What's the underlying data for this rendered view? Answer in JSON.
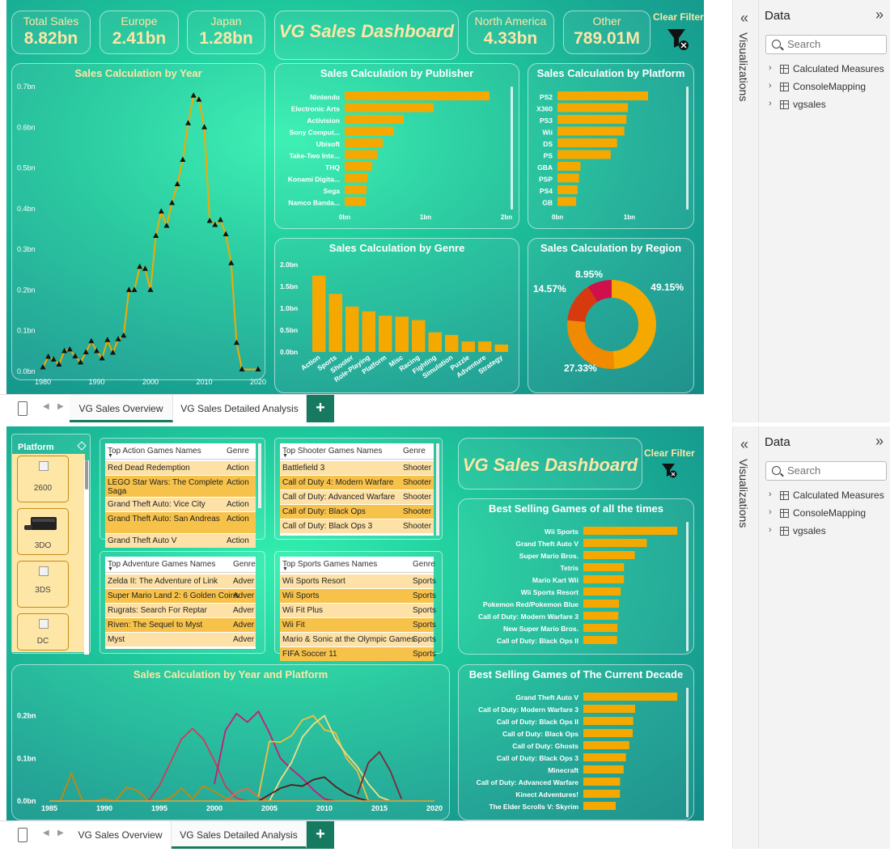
{
  "colors": {
    "accent": "#f5a800",
    "title_text": "#fde6a6",
    "line_gold": "#f5a800",
    "donut": [
      "#f5a800",
      "#f08a00",
      "#d83a10",
      "#d0104a"
    ]
  },
  "top": {
    "kpis": [
      {
        "label": "Total Sales",
        "value": "8.82bn"
      },
      {
        "label": "Europe",
        "value": "2.41bn"
      },
      {
        "label": "Japan",
        "value": "1.28bn"
      },
      {
        "label": "North America",
        "value": "4.33bn"
      },
      {
        "label": "Other",
        "value": "789.01M"
      }
    ],
    "dashboard_title": "VG Sales Dashboard",
    "clear_filter": "Clear Filter"
  },
  "bottom": {
    "dashboard_title": "VG Sales Dashboard",
    "clear_filter": "Clear Filter"
  },
  "tabs": {
    "overview": "VG Sales Overview",
    "detailed": "VG Sales Detailed Analysis",
    "add": "+"
  },
  "panes": {
    "visualizations": "Visualizations",
    "data": "Data",
    "search_placeholder": "Search",
    "items": [
      "Calculated Measures",
      "ConsoleMapping",
      "vgsales"
    ]
  },
  "platform_slicer": {
    "title": "Platform",
    "items": [
      "2600",
      "3DO",
      "3DS",
      "DC"
    ]
  },
  "tables": {
    "action": {
      "col1": "Top Action Games Names",
      "col2": "Genre",
      "rows": [
        [
          "Red Dead Redemption",
          "Action"
        ],
        [
          "LEGO Star Wars: The Complete Saga",
          "Action"
        ],
        [
          "Grand Theft Auto: Vice City",
          "Action"
        ],
        [
          "Grand Theft Auto: San Andreas",
          "Action"
        ],
        [
          "Grand Theft Auto V",
          "Action"
        ]
      ]
    },
    "shooter": {
      "col1": "Top Shooter Games Names",
      "col2": "Genre",
      "rows": [
        [
          "Battlefield 3",
          "Shooter"
        ],
        [
          "Call of Duty 4: Modern Warfare",
          "Shooter"
        ],
        [
          "Call of Duty: Advanced Warfare",
          "Shooter"
        ],
        [
          "Call of Duty: Black Ops",
          "Shooter"
        ],
        [
          "Call of Duty: Black Ops 3",
          "Shooter"
        ]
      ]
    },
    "adventure": {
      "col1": "Top Adventure Games Names",
      "col2": "Genre",
      "rows": [
        [
          "Zelda II: The Adventure of Link",
          "Adver"
        ],
        [
          "Super Mario Land 2: 6 Golden Coins",
          "Adver"
        ],
        [
          "Rugrats: Search For Reptar",
          "Adver"
        ],
        [
          "Riven: The Sequel to Myst",
          "Adver"
        ],
        [
          "Myst",
          "Adver"
        ]
      ]
    },
    "sports": {
      "col1": "Top Sports Games Names",
      "col2": "Genre",
      "rows": [
        [
          "Wii Sports Resort",
          "Sports"
        ],
        [
          "Wii Sports",
          "Sports"
        ],
        [
          "Wii Fit Plus",
          "Sports"
        ],
        [
          "Wii Fit",
          "Sports"
        ],
        [
          "Mario & Sonic at the Olympic Games",
          "Sports"
        ],
        [
          "FIFA Soccer 11",
          "Sports"
        ]
      ]
    }
  },
  "chart_data": [
    {
      "id": "year",
      "type": "line",
      "title": "Sales Calculation by Year",
      "xlabel": "",
      "ylabel": "",
      "x": [
        1980,
        1981,
        1982,
        1983,
        1984,
        1985,
        1986,
        1987,
        1988,
        1989,
        1990,
        1991,
        1992,
        1993,
        1994,
        1995,
        1996,
        1997,
        1998,
        1999,
        2000,
        2001,
        2002,
        2003,
        2004,
        2005,
        2006,
        2007,
        2008,
        2009,
        2010,
        2011,
        2012,
        2013,
        2014,
        2015,
        2016,
        2017,
        2020
      ],
      "values": [
        0.01,
        0.036,
        0.029,
        0.017,
        0.05,
        0.054,
        0.037,
        0.022,
        0.047,
        0.074,
        0.05,
        0.032,
        0.077,
        0.046,
        0.079,
        0.088,
        0.2,
        0.2,
        0.257,
        0.252,
        0.2,
        0.333,
        0.393,
        0.358,
        0.414,
        0.46,
        0.52,
        0.61,
        0.678,
        0.668,
        0.6,
        0.37,
        0.36,
        0.372,
        0.337,
        0.266,
        0.07,
        0.005,
        0.005
      ],
      "xticks": [
        1980,
        1990,
        2000,
        2010,
        2020
      ],
      "xlim": [
        1980,
        2020
      ],
      "yticks": [
        "0.0bn",
        "0.1bn",
        "0.2bn",
        "0.3bn",
        "0.4bn",
        "0.5bn",
        "0.6bn",
        "0.7bn"
      ],
      "ylim": [
        0,
        0.7
      ]
    },
    {
      "id": "publisher",
      "type": "bar",
      "orientation": "horizontal",
      "title": "Sales Calculation by Publisher",
      "categories": [
        "Nintendo",
        "Electronic Arts",
        "Activision",
        "Sony Comput...",
        "Ubisoft",
        "Take-Two Inte...",
        "THQ",
        "Konami Digita...",
        "Sega",
        "Namco Banda..."
      ],
      "values": [
        1.79,
        1.1,
        0.73,
        0.61,
        0.47,
        0.4,
        0.34,
        0.28,
        0.27,
        0.26
      ],
      "xticks": [
        "0bn",
        "1bn",
        "2bn"
      ],
      "xlim": [
        0,
        2
      ]
    },
    {
      "id": "platform",
      "type": "bar",
      "orientation": "horizontal",
      "title": "Sales Calculation by Platform",
      "categories": [
        "PS2",
        "X360",
        "PS3",
        "Wii",
        "DS",
        "PS",
        "GBA",
        "PSP",
        "PS4",
        "GB"
      ],
      "values": [
        1.26,
        0.98,
        0.96,
        0.93,
        0.83,
        0.74,
        0.32,
        0.3,
        0.28,
        0.26
      ],
      "xticks": [
        "0bn",
        "1bn"
      ],
      "xlim": [
        0,
        1.8
      ]
    },
    {
      "id": "genre",
      "type": "bar",
      "title": "Sales Calculation by Genre",
      "categories": [
        "Action",
        "Sports",
        "Shooter",
        "Role-Playing",
        "Platform",
        "Misc",
        "Racing",
        "Fighting",
        "Simulation",
        "Puzzle",
        "Adventure",
        "Strategy"
      ],
      "values": [
        1.75,
        1.33,
        1.04,
        0.93,
        0.83,
        0.81,
        0.73,
        0.45,
        0.39,
        0.24,
        0.24,
        0.17
      ],
      "yticks": [
        "0.0bn",
        "0.5bn",
        "1.0bn",
        "1.5bn",
        "2.0bn"
      ],
      "ylim": [
        0,
        2
      ]
    },
    {
      "id": "region",
      "type": "pie",
      "title": "Sales Calculation by Region",
      "values": [
        49.15,
        27.33,
        14.57,
        8.95
      ],
      "labels": [
        "49.15%",
        "27.33%",
        "14.57%",
        "8.95%"
      ]
    },
    {
      "id": "best_all",
      "type": "bar",
      "orientation": "horizontal",
      "title": "Best Selling Games of all the times",
      "categories": [
        "Wii Sports",
        "Grand Theft Auto V",
        "Super Mario Bros.",
        "Tetris",
        "Mario Kart Wii",
        "Wii Sports Resort",
        "Pokemon Red/Pokemon Blue",
        "Call of Duty: Modern Warfare 3",
        "New Super Mario Bros.",
        "Call of Duty: Black Ops II"
      ],
      "values": [
        82.74,
        55.92,
        45.31,
        35.84,
        35.82,
        33.0,
        31.37,
        30.83,
        30.01,
        29.72
      ]
    },
    {
      "id": "best_decade",
      "type": "bar",
      "orientation": "horizontal",
      "title": "Best Selling Games of The Current Decade",
      "categories": [
        "Grand Theft Auto V",
        "Call of Duty: Modern Warfare 3",
        "Call of Duty: Black Ops II",
        "Call of Duty: Black Ops",
        "Call of Duty: Ghosts",
        "Call of Duty: Black Ops 3",
        "Minecraft",
        "Call of Duty: Advanced Warfare",
        "Kinect Adventures!",
        "The Elder Scrolls V: Skyrim"
      ],
      "values": [
        55.92,
        30.83,
        29.72,
        29.4,
        27.38,
        25.32,
        24.01,
        21.9,
        21.81,
        19.28
      ]
    },
    {
      "id": "year_platform",
      "type": "line",
      "title": "Sales Calculation by Year and Platform",
      "xticks": [
        1985,
        1990,
        1995,
        2000,
        2005,
        2010,
        2015,
        2020
      ],
      "xlim": [
        1985,
        2020
      ],
      "yticks": [
        "0.0bn",
        "0.1bn",
        "0.2bn"
      ],
      "ylim": [
        0,
        0.22
      ],
      "series": [
        {
          "color": "#c8860a",
          "x": [
            1985,
            1986,
            1987,
            1988,
            1989,
            1990,
            1991,
            1992,
            1993,
            1994,
            1995,
            1996,
            1997,
            1998,
            1999,
            2000,
            2001,
            2002
          ],
          "values": [
            0.0,
            0.0,
            0.065,
            0.0,
            0.0,
            0.005,
            0.0,
            0.032,
            0.025,
            0.0,
            0.0,
            0.007,
            0.03,
            0.005,
            0.036,
            0.022,
            0.007,
            0.0
          ]
        },
        {
          "color": "#d23a5a",
          "x": [
            1994,
            1995,
            1996,
            1997,
            1998,
            1999,
            2000,
            2001,
            2002,
            2003
          ],
          "values": [
            0.0,
            0.036,
            0.09,
            0.145,
            0.17,
            0.145,
            0.095,
            0.035,
            0.007,
            0.0
          ]
        },
        {
          "color": "#c81a78",
          "x": [
            2000,
            2001,
            2002,
            2003,
            2004,
            2005,
            2006,
            2007,
            2008,
            2009,
            2010,
            2011
          ],
          "values": [
            0.04,
            0.165,
            0.205,
            0.185,
            0.21,
            0.16,
            0.1,
            0.075,
            0.053,
            0.026,
            0.005,
            0.0
          ]
        },
        {
          "color": "#e36a4a",
          "x": [
            2001,
            2002,
            2003,
            2004,
            2005,
            2006,
            2007,
            2008
          ],
          "values": [
            0.0,
            0.02,
            0.03,
            0.01,
            0.0,
            0.0,
            0.0,
            0.0
          ]
        },
        {
          "color": "#f3c13a",
          "x": [
            2004,
            2005,
            2006,
            2007,
            2008,
            2009,
            2010,
            2011,
            2012,
            2013,
            2014,
            2015
          ],
          "values": [
            0.01,
            0.14,
            0.138,
            0.153,
            0.19,
            0.2,
            0.167,
            0.16,
            0.1,
            0.07,
            0.0,
            0.0
          ]
        },
        {
          "color": "#eedf8a",
          "x": [
            2005,
            2006,
            2007,
            2008,
            2009,
            2010,
            2011,
            2012,
            2013,
            2014,
            2015,
            2016
          ],
          "values": [
            0.0,
            0.05,
            0.09,
            0.15,
            0.18,
            0.2,
            0.145,
            0.11,
            0.08,
            0.04,
            0.01,
            0.0
          ]
        },
        {
          "color": "#5a1a1a",
          "x": [
            2004,
            2005,
            2006,
            2007,
            2008,
            2009,
            2010,
            2011,
            2012,
            2013,
            2014,
            2015,
            2016
          ],
          "values": [
            0.0,
            0.015,
            0.03,
            0.038,
            0.035,
            0.05,
            0.056,
            0.034,
            0.017,
            0.007,
            0.0,
            0.0,
            0.0
          ]
        },
        {
          "color": "#7a2a3a",
          "x": [
            2013,
            2014,
            2015,
            2016,
            2017
          ],
          "values": [
            0.016,
            0.09,
            0.115,
            0.07,
            0.005
          ]
        },
        {
          "color": "#d4a040",
          "x": [
            1985,
            2000,
            2020
          ],
          "values": [
            0.0,
            0.0,
            0.0
          ]
        }
      ]
    }
  ]
}
